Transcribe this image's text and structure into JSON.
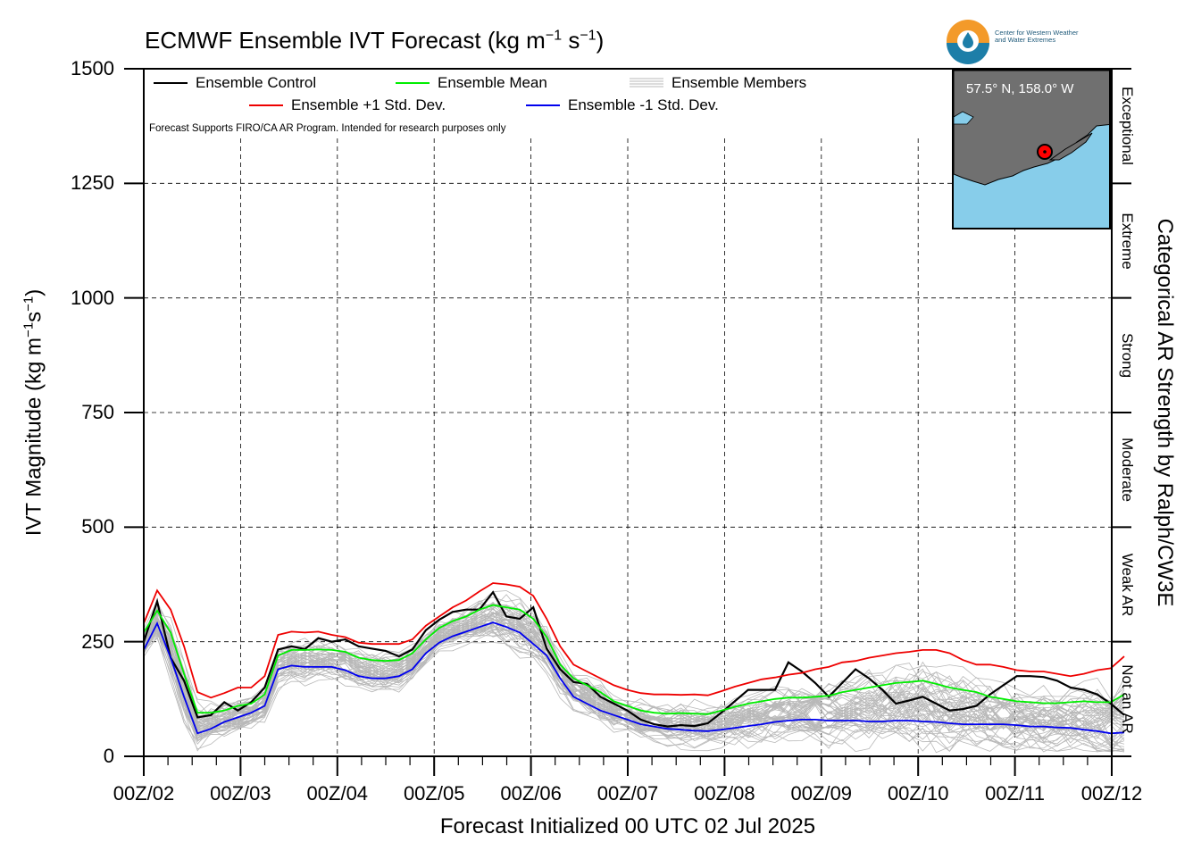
{
  "title_text": "ECMWF Ensemble IVT Forecast (kg m",
  "title_sup1": "−1",
  "title_mid": " s",
  "title_sup2": "−1",
  "title_end": ")",
  "xlabel": "Forecast Initialized 00 UTC 02 Jul 2025",
  "ylabel_text": "IVT Magnitude (kg m",
  "ylabel_sup1": "−1",
  "ylabel_mid": "s",
  "ylabel_sup2": "−1",
  "ylabel_end": ")",
  "right_label": "Categorical AR Strength by Ralph/CW3E",
  "note": "Forecast Supports FIRO/CA AR Program. Intended for research purposes only",
  "legend": {
    "control": "Ensemble Control",
    "mean": "Ensemble Mean",
    "members": "Ensemble Members",
    "plus": "Ensemble +1 Std. Dev.",
    "minus": "Ensemble -1 Std. Dev."
  },
  "inset": {
    "location_label": "57.5° N, 158.0° W"
  },
  "logo": {
    "line1": "Center for Western Weather",
    "line2": "and Water Extremes"
  },
  "colors": {
    "control": "#000000",
    "mean": "#00ee00",
    "plus": "#ee0000",
    "minus": "#0000ee",
    "members": "#b8b8b8",
    "ocean": "#87cdea",
    "land": "#707070"
  },
  "categories": [
    "Not an AR",
    "Weak AR",
    "Moderate",
    "Strong",
    "Extreme",
    "Exceptional"
  ],
  "chart_data": {
    "type": "line",
    "xlabel": "Forecast Initialized 00 UTC 02 Jul 2025",
    "ylabel": "IVT Magnitude (kg m−1s−1)",
    "ylim": [
      0,
      1500
    ],
    "yticks": [
      0,
      250,
      500,
      750,
      1000,
      1250,
      1500
    ],
    "xlim_hours": [
      0,
      240
    ],
    "x_tick_labels": [
      "00Z/02",
      "00Z/03",
      "00Z/04",
      "00Z/05",
      "00Z/06",
      "00Z/07",
      "00Z/08",
      "00Z/09",
      "00Z/10",
      "00Z/11",
      "00Z/12"
    ],
    "grid": true,
    "category_thresholds": [
      0,
      250,
      500,
      750,
      1000,
      1250,
      1500
    ],
    "forecast_hour_step": 6,
    "series": [
      {
        "name": "Ensemble Control",
        "color": "#000000",
        "values": [
          250,
          338,
          215,
          165,
          85,
          90,
          118,
          100,
          118,
          150,
          233,
          240,
          234,
          258,
          250,
          255,
          240,
          235,
          230,
          218,
          233,
          275,
          298,
          315,
          320,
          320,
          358,
          305,
          300,
          325,
          235,
          190,
          162,
          158,
          130,
          115,
          100,
          80,
          70,
          65,
          68,
          66,
          72,
          95,
          120,
          145,
          145,
          145,
          205,
          185,
          160,
          130,
          160,
          190,
          170,
          145,
          115,
          122,
          130,
          115,
          100,
          103,
          110,
          135,
          155,
          175,
          175,
          173,
          165,
          150,
          145,
          135,
          115,
          90
        ]
      },
      {
        "name": "Ensemble Mean",
        "color": "#00ee00",
        "values": [
          270,
          318,
          270,
          180,
          95,
          95,
          100,
          110,
          115,
          135,
          220,
          232,
          232,
          233,
          232,
          228,
          215,
          210,
          208,
          210,
          225,
          255,
          280,
          295,
          305,
          320,
          330,
          325,
          320,
          300,
          260,
          200,
          170,
          155,
          140,
          120,
          110,
          100,
          95,
          93,
          94,
          93,
          92,
          100,
          108,
          115,
          120,
          125,
          128,
          128,
          130,
          132,
          140,
          145,
          150,
          155,
          160,
          162,
          165,
          158,
          150,
          145,
          140,
          130,
          125,
          120,
          118,
          116,
          116,
          118,
          120,
          118,
          118,
          135
        ]
      },
      {
        "name": "Ensemble +1 Std. Dev.",
        "color": "#ee0000",
        "values": [
          290,
          362,
          320,
          240,
          140,
          128,
          138,
          150,
          150,
          175,
          265,
          272,
          270,
          272,
          265,
          260,
          248,
          245,
          245,
          245,
          255,
          285,
          305,
          325,
          340,
          360,
          378,
          375,
          370,
          350,
          300,
          240,
          200,
          185,
          170,
          155,
          145,
          138,
          135,
          135,
          134,
          135,
          133,
          142,
          152,
          160,
          168,
          172,
          178,
          182,
          190,
          195,
          205,
          208,
          215,
          220,
          225,
          228,
          232,
          232,
          225,
          210,
          200,
          200,
          195,
          188,
          185,
          185,
          180,
          175,
          180,
          188,
          192,
          218
        ]
      },
      {
        "name": "Ensemble -1 Std. Dev.",
        "color": "#0000ee",
        "values": [
          232,
          290,
          215,
          130,
          50,
          60,
          75,
          85,
          95,
          110,
          190,
          198,
          195,
          195,
          195,
          188,
          175,
          170,
          170,
          175,
          190,
          225,
          248,
          262,
          272,
          282,
          292,
          282,
          270,
          245,
          220,
          170,
          130,
          115,
          100,
          90,
          80,
          70,
          65,
          60,
          58,
          56,
          55,
          58,
          62,
          66,
          70,
          75,
          78,
          80,
          80,
          78,
          78,
          78,
          76,
          76,
          78,
          78,
          76,
          75,
          72,
          70,
          70,
          70,
          70,
          68,
          65,
          65,
          63,
          62,
          58,
          55,
          50,
          52
        ]
      }
    ],
    "members_note": "Ensemble Members shown as grey lines spread around the ensemble mean"
  }
}
